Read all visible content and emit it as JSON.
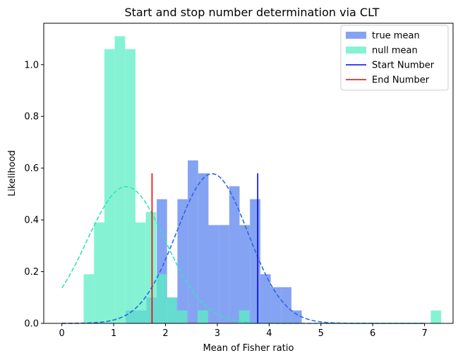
{
  "chart_data": {
    "type": "bar",
    "title": "Start and stop number determination via CLT",
    "xlabel": "Mean of Fisher ratio",
    "ylabel": "Likelihood",
    "xlim": [
      -0.35,
      7.55
    ],
    "ylim": [
      0,
      1.16
    ],
    "x_ticks": [
      0,
      1,
      2,
      3,
      4,
      5,
      6,
      7
    ],
    "y_ticks": [
      0.0,
      0.2,
      0.4,
      0.6,
      0.8,
      1.0
    ],
    "grid": false,
    "legend_position": "top-right",
    "bin_width": 0.2,
    "series": [
      {
        "name": "true mean",
        "kind": "histogram",
        "color": "#6a8ff0",
        "opacity": 0.82,
        "bins": [
          {
            "x": 1.23,
            "h": 0.05
          },
          {
            "x": 1.43,
            "h": 0.05
          },
          {
            "x": 1.63,
            "h": 0.1
          },
          {
            "x": 1.83,
            "h": 0.48
          },
          {
            "x": 2.03,
            "h": 0.1
          },
          {
            "x": 2.23,
            "h": 0.48
          },
          {
            "x": 2.43,
            "h": 0.63
          },
          {
            "x": 2.63,
            "h": 0.58
          },
          {
            "x": 2.83,
            "h": 0.38
          },
          {
            "x": 3.03,
            "h": 0.38
          },
          {
            "x": 3.23,
            "h": 0.53
          },
          {
            "x": 3.43,
            "h": 0.38
          },
          {
            "x": 3.63,
            "h": 0.48
          },
          {
            "x": 3.83,
            "h": 0.19
          },
          {
            "x": 4.03,
            "h": 0.14
          },
          {
            "x": 4.23,
            "h": 0.14
          },
          {
            "x": 4.43,
            "h": 0.05
          }
        ]
      },
      {
        "name": " null mean",
        "kind": "histogram",
        "color": "#5cefc4",
        "opacity": 0.75,
        "bins": [
          {
            "x": 0.42,
            "h": 0.19
          },
          {
            "x": 0.62,
            "h": 0.39
          },
          {
            "x": 0.82,
            "h": 1.06
          },
          {
            "x": 1.02,
            "h": 1.11
          },
          {
            "x": 1.22,
            "h": 1.06
          },
          {
            "x": 1.42,
            "h": 0.39
          },
          {
            "x": 1.62,
            "h": 0.43
          },
          {
            "x": 1.82,
            "h": 0.19
          },
          {
            "x": 2.02,
            "h": 0.1
          },
          {
            "x": 2.22,
            "h": 0.05
          },
          {
            "x": 2.62,
            "h": 0.05
          },
          {
            "x": 3.42,
            "h": 0.05
          },
          {
            "x": 7.12,
            "h": 0.05
          }
        ]
      }
    ],
    "curves": [
      {
        "label": "true mean fit",
        "color": "#2f65e6",
        "mean": 2.9,
        "sd": 0.69
      },
      {
        "label": "null mean fit",
        "color": "#35e3b6",
        "mean": 1.24,
        "sd": 0.755
      }
    ],
    "vlines": [
      {
        "name": "Start Number",
        "x": 3.78,
        "y0": 0,
        "y1": 0.58,
        "color": "#0000ee"
      },
      {
        "name": "End Number",
        "x": 1.74,
        "y0": 0,
        "y1": 0.58,
        "color": "#ee0000"
      }
    ]
  }
}
